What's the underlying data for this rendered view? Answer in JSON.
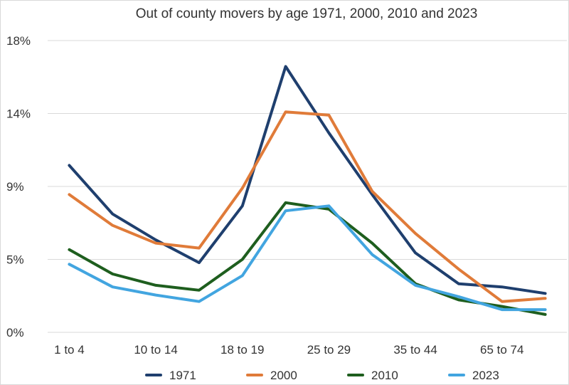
{
  "chart_data": {
    "type": "line",
    "title": "Out of county movers by age 1971, 2000, 2010 and 2023",
    "xlabel": "",
    "ylabel": "",
    "categories": [
      "1 to 4",
      "",
      "10 to 14",
      "",
      "18 to 19",
      "",
      "25 to 29",
      "",
      "35 to 44",
      "",
      "65 to 74",
      ""
    ],
    "ylim": [
      0,
      18
    ],
    "yticks": [
      0,
      4.5,
      9,
      13.5,
      18
    ],
    "ytick_labels": [
      "0%",
      "5%",
      "9%",
      "14%",
      "18%"
    ],
    "grid": true,
    "legend_position": "bottom",
    "series": [
      {
        "name": "1971",
        "color": "#1f3f6e",
        "values": [
          10.3,
          7.3,
          5.7,
          4.3,
          7.8,
          16.4,
          12.3,
          8.5,
          4.9,
          3.0,
          2.8,
          2.4
        ]
      },
      {
        "name": "2000",
        "color": "#e07b39",
        "values": [
          8.5,
          6.6,
          5.5,
          5.2,
          8.9,
          13.6,
          13.4,
          8.7,
          6.1,
          3.9,
          1.9,
          2.1
        ]
      },
      {
        "name": "2010",
        "color": "#1e5e1e",
        "values": [
          5.1,
          3.6,
          2.9,
          2.6,
          4.5,
          8.0,
          7.6,
          5.5,
          3.0,
          2.0,
          1.6,
          1.1
        ]
      },
      {
        "name": "2023",
        "color": "#42a5e0",
        "values": [
          4.2,
          2.8,
          2.3,
          1.9,
          3.5,
          7.5,
          7.8,
          4.8,
          2.9,
          2.2,
          1.4,
          1.4
        ]
      }
    ]
  }
}
